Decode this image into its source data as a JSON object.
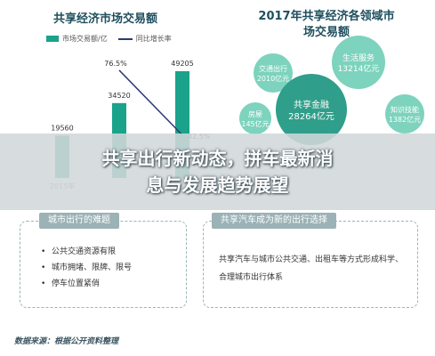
{
  "chart_data": [
    {
      "type": "bar",
      "title": "共享经济市场交易额",
      "legend": [
        "市场交易额/亿",
        "同比增长率"
      ],
      "categories": [
        "2015年",
        "2016年",
        "2017年"
      ],
      "series": [
        {
          "name": "市场交易额/亿",
          "type": "bar",
          "values": [
            19560,
            34520,
            49205
          ]
        },
        {
          "name": "同比增长率",
          "type": "line",
          "values": [
            null,
            76.5,
            42.5
          ],
          "unit": "%"
        }
      ],
      "data_labels": [
        "19560",
        "34520",
        "49205",
        "76.5%",
        "42.5%"
      ],
      "visible_category_labels": [
        "2015年"
      ]
    },
    {
      "type": "bubble",
      "title": "2017年共享经济各领域市场交易额",
      "items": [
        {
          "name": "交通出行",
          "value": "2010亿元"
        },
        {
          "name": "生活服务",
          "value": "13214亿元"
        },
        {
          "name": "共享金融",
          "value": "28264亿元"
        },
        {
          "name": "房屋",
          "value": "145亿元"
        },
        {
          "name": "知识技能",
          "value": "1382亿元"
        }
      ]
    }
  ],
  "colors": {
    "bar": "#1aa38a",
    "line": "#2e3a72",
    "bubble_dark": "#2f9e8a",
    "bubble_light": "#7dd3bd",
    "title": "#1f4f5e"
  },
  "banner": {
    "line1": "共享出行新动态，拼车最新消",
    "line2": "息与发展趋势展望"
  },
  "left_box": {
    "heading": "城市出行的难题",
    "items": [
      "公共交通资源有限",
      "城市拥堵、限牌、限号",
      "停车位置紧俏"
    ]
  },
  "right_box": {
    "heading": "共享汽车成为新的出行选择",
    "text": "共享汽车与城市公共交通、出租车等方式形成科学、合理城市出行体系"
  },
  "source": "数据来源：根据公开资料整理"
}
